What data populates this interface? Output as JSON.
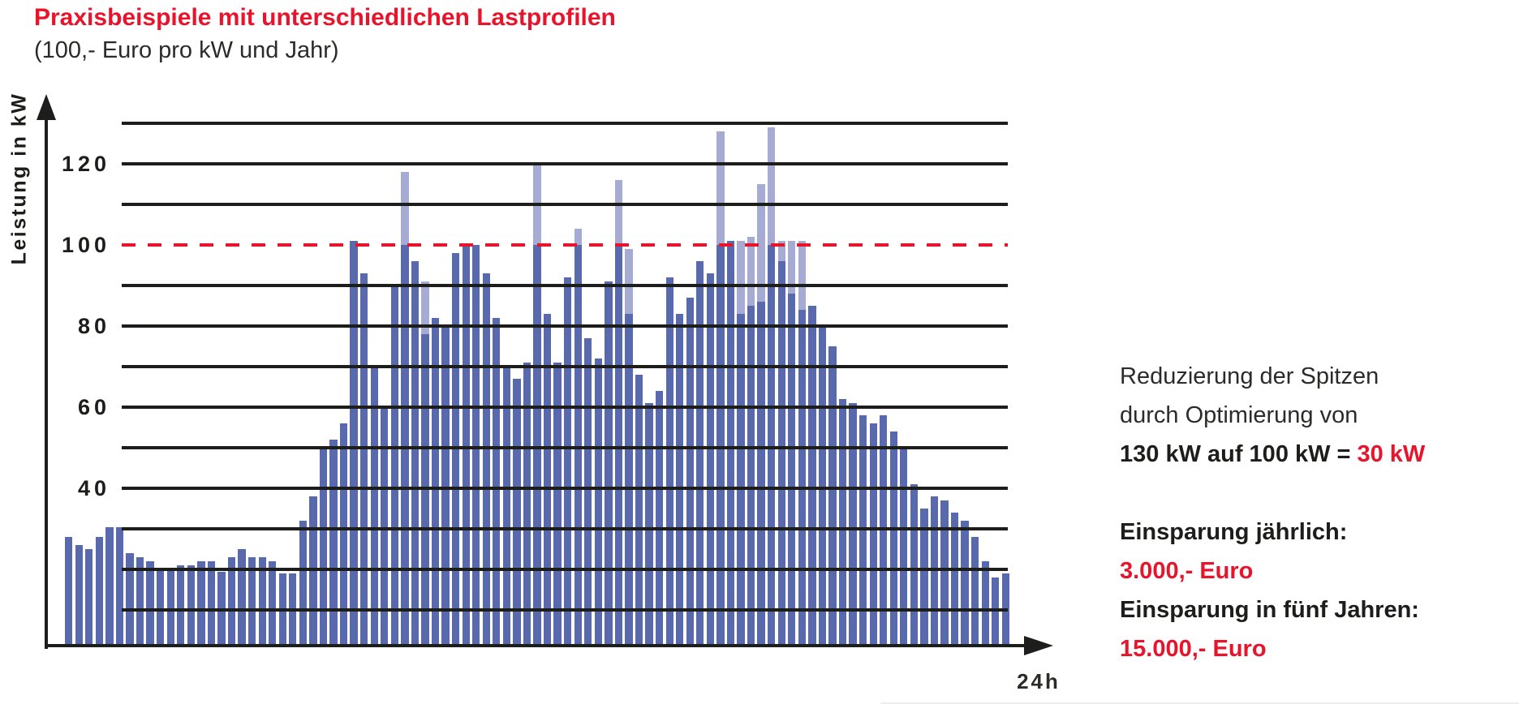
{
  "header": {
    "title": "Praxisbeispiele mit unterschiedlichen Lastprofilen",
    "subtitle": "(100,- Euro pro kW und Jahr)"
  },
  "colors": {
    "accent_red": "#e8142c",
    "bar_dark": "#5969ad",
    "bar_light": "#a6abd4",
    "ink": "#1d1d1b"
  },
  "chart_data": {
    "type": "bar",
    "title": "Praxisbeispiele mit unterschiedlichen Lastprofilen",
    "subtitle": "(100,- Euro pro kW und Jahr)",
    "ylabel": "Leistung in kW",
    "xlabel": "24h",
    "ylim": [
      0,
      135
    ],
    "grid": true,
    "gridlines_kw": [
      130,
      120,
      110,
      90,
      80,
      70,
      60,
      50,
      40,
      30,
      20,
      10
    ],
    "y_tick_labels": [
      "120",
      "100",
      "80",
      "60",
      "40"
    ],
    "threshold_kw": 100,
    "threshold_style": "red-dashed",
    "legend_position": "none",
    "bars": {
      "dark_color": "#5969ad",
      "light_color": "#a6abd4",
      "values_kw": [
        28,
        26,
        25,
        28,
        30.5,
        30.5,
        24,
        23,
        22,
        20,
        20,
        21,
        21,
        22,
        22,
        19.5,
        23,
        25,
        23,
        23,
        22,
        19,
        19,
        32,
        38,
        50,
        52,
        56,
        101,
        93,
        70,
        60,
        90,
        100,
        96,
        78,
        82,
        80,
        98,
        100,
        100,
        93,
        82,
        70,
        67,
        71,
        100,
        83,
        71,
        92,
        100,
        77,
        72,
        91,
        100,
        83,
        68,
        61,
        64,
        92,
        83,
        87,
        96,
        93,
        100,
        101,
        83,
        85,
        86,
        100,
        96,
        88,
        84,
        85,
        80,
        75,
        62,
        61,
        58,
        56,
        58,
        54,
        50,
        41,
        35,
        38,
        37,
        34,
        32,
        28,
        22,
        18,
        19
      ],
      "peak_tops_kw": [
        null,
        null,
        null,
        null,
        null,
        null,
        null,
        null,
        null,
        null,
        null,
        null,
        null,
        null,
        null,
        null,
        null,
        null,
        null,
        null,
        null,
        null,
        null,
        null,
        null,
        null,
        null,
        null,
        null,
        null,
        null,
        null,
        null,
        118,
        null,
        91,
        null,
        null,
        null,
        null,
        null,
        null,
        null,
        null,
        null,
        null,
        120,
        null,
        null,
        null,
        104,
        null,
        null,
        null,
        116,
        99,
        null,
        null,
        null,
        null,
        null,
        null,
        null,
        null,
        128,
        null,
        101,
        102,
        115,
        129,
        101,
        101,
        101,
        null,
        null,
        null,
        null,
        null,
        null,
        null,
        null,
        null,
        null,
        null,
        null,
        null,
        null,
        null,
        null,
        null,
        null,
        null,
        null
      ]
    }
  },
  "annotation": {
    "line1": "Reduzierung der Spitzen",
    "line2": "durch Optimierung von",
    "line3_bold": "130 kW auf 100 kW",
    "line3_eq": "=",
    "line3_red": "30 kW",
    "savings_yearly_label": "Einsparung jährlich:",
    "savings_yearly_value": "3.000,- Euro",
    "savings_5y_label": "Einsparung in fünf Jahren:",
    "savings_5y_value": "15.000,- Euro"
  }
}
